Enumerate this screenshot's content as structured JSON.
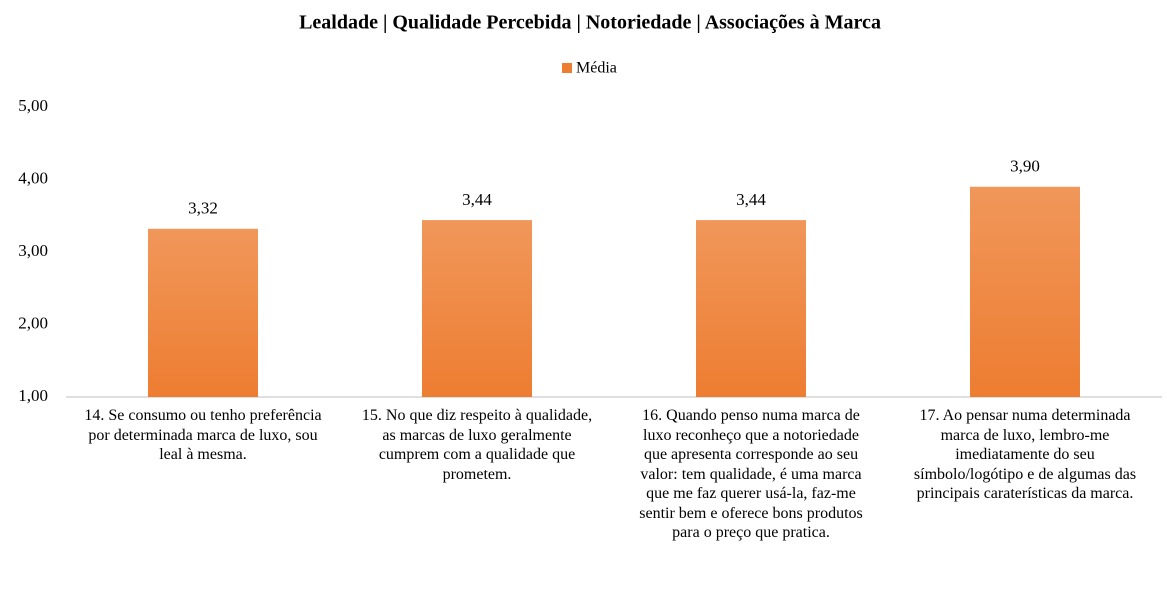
{
  "chart_data": {
    "type": "bar",
    "title": "Lealdade | Qualidade Percebida | Notoriedade | Associações à Marca",
    "categories": [
      "14. Se consumo ou tenho preferência por determinada marca de luxo, sou leal à mesma.",
      "15. No que diz respeito à qualidade, as marcas de luxo geralmente cumprem com a qualidade que prometem.",
      "16. Quando penso numa marca de luxo reconheço que a notoriedade que apresenta corresponde ao seu valor: tem qualidade, é uma marca que me faz querer usá-la, faz-me sentir bem e oferece bons produtos para o preço que pratica.",
      "17. Ao pensar numa determinada marca de luxo, lembro-me imediatamente do seu símbolo/logótipo e de algumas das principais caraterísticas da marca."
    ],
    "series": [
      {
        "name": "Média",
        "color": "#ed7d31",
        "values": [
          3.32,
          3.44,
          3.44,
          3.9
        ],
        "value_labels": [
          "3,32",
          "3,44",
          "3,44",
          "3,90"
        ]
      }
    ],
    "ylim": [
      1,
      5
    ],
    "yticks": [
      {
        "value": 1,
        "label": "1,00"
      },
      {
        "value": 2,
        "label": "2,00"
      },
      {
        "value": 3,
        "label": "3,00"
      },
      {
        "value": 4,
        "label": "4,00"
      },
      {
        "value": 5,
        "label": "5,00"
      }
    ],
    "grid": false,
    "legend": "top"
  }
}
